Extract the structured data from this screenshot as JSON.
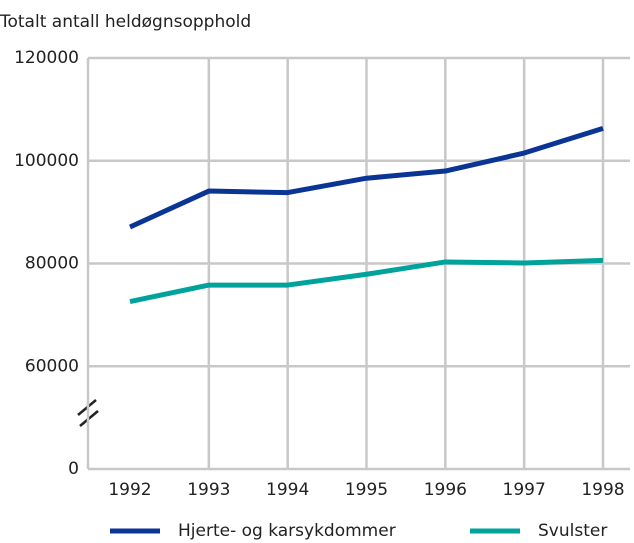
{
  "chart_data": {
    "type": "line",
    "y_axis_label": "Totalt antall heldøgnsopphold",
    "categories": [
      "1992",
      "1993",
      "1994",
      "1995",
      "1996",
      "1997",
      "1998"
    ],
    "series": [
      {
        "name": "Hjerte- og karsykdommer",
        "color": "#0a3595",
        "values": [
          87100,
          94100,
          93800,
          96600,
          98000,
          101500,
          106300
        ]
      },
      {
        "name": "Svulster",
        "color": "#00a39c",
        "values": [
          72600,
          75800,
          75800,
          77900,
          80300,
          80100,
          80600
        ]
      }
    ],
    "ylim": [
      0,
      120000
    ],
    "yticks": [
      0,
      60000,
      80000,
      100000,
      120000
    ],
    "y_break": [
      0,
      60000
    ],
    "grid": true
  }
}
